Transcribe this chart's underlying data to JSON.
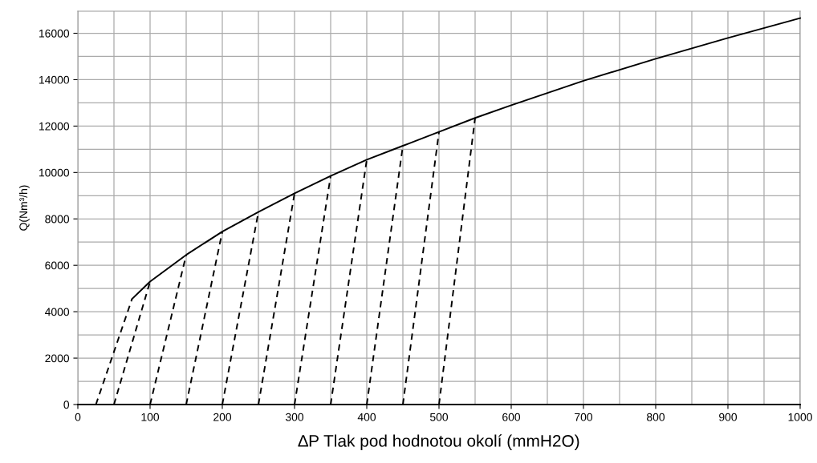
{
  "chart_data": {
    "type": "line",
    "xlabel": "∆P Tlak pod hodnotou okolí (mmH2O)",
    "ylabel": "Q(Nm³/h)",
    "xlim": [
      0,
      1000
    ],
    "ylim": [
      0,
      16950
    ],
    "xticks": [
      0,
      {
        "value": 50,
        "label": null
      },
      100,
      {
        "value": 150,
        "label": null
      },
      200,
      {
        "value": 250,
        "label": null
      },
      300,
      {
        "value": 350,
        "label": null
      },
      400,
      {
        "value": 450,
        "label": null
      },
      500,
      {
        "value": 550,
        "label": null
      },
      600,
      {
        "value": 650,
        "label": null
      },
      700,
      {
        "value": 750,
        "label": null
      },
      800,
      {
        "value": 850,
        "label": null
      },
      900,
      {
        "value": 950,
        "label": null
      },
      1000
    ],
    "yticks": [
      0,
      {
        "value": 1000,
        "label": null
      },
      2000,
      {
        "value": 3000,
        "label": null
      },
      4000,
      {
        "value": 5000,
        "label": null
      },
      6000,
      {
        "value": 7000,
        "label": null
      },
      8000,
      {
        "value": 9000,
        "label": null
      },
      10000,
      {
        "value": 11000,
        "label": null
      },
      12000,
      {
        "value": 13000,
        "label": null
      },
      14000,
      {
        "value": 15000,
        "label": null
      },
      16000
    ],
    "grid": true,
    "marker": "none",
    "series": [
      {
        "color": "#000000",
        "line_style": "solid",
        "x": [
          75,
          100,
          150,
          200,
          250,
          300,
          350,
          400,
          450,
          500,
          550,
          600,
          700,
          800,
          900,
          1000
        ],
        "values": [
          4550,
          5300,
          6450,
          7450,
          8300,
          9100,
          9850,
          10550,
          11150,
          11750,
          12350,
          12900,
          13950,
          14900,
          15800,
          16650
        ]
      },
      {
        "color": "#000000",
        "line_style": "dashed",
        "x": [
          25,
          75
        ],
        "values": [
          0,
          4550
        ]
      },
      {
        "color": "#000000",
        "line_style": "dashed",
        "x": [
          50,
          100
        ],
        "values": [
          0,
          5300
        ]
      },
      {
        "color": "#000000",
        "line_style": "dashed",
        "x": [
          100,
          150
        ],
        "values": [
          0,
          6450
        ]
      },
      {
        "color": "#000000",
        "line_style": "dashed",
        "x": [
          150,
          200
        ],
        "values": [
          0,
          7450
        ]
      },
      {
        "color": "#000000",
        "line_style": "dashed",
        "x": [
          200,
          250
        ],
        "values": [
          0,
          8300
        ]
      },
      {
        "color": "#000000",
        "line_style": "dashed",
        "x": [
          250,
          300
        ],
        "values": [
          0,
          9100
        ]
      },
      {
        "color": "#000000",
        "line_style": "dashed",
        "x": [
          300,
          350
        ],
        "values": [
          0,
          9850
        ]
      },
      {
        "color": "#000000",
        "line_style": "dashed",
        "x": [
          350,
          400
        ],
        "values": [
          0,
          10550
        ]
      },
      {
        "color": "#000000",
        "line_style": "dashed",
        "x": [
          400,
          450
        ],
        "values": [
          0,
          11150
        ]
      },
      {
        "color": "#000000",
        "line_style": "dashed",
        "x": [
          450,
          500
        ],
        "values": [
          0,
          11750
        ]
      },
      {
        "color": "#000000",
        "line_style": "dashed",
        "x": [
          500,
          550
        ],
        "values": [
          0,
          12350
        ]
      }
    ]
  }
}
